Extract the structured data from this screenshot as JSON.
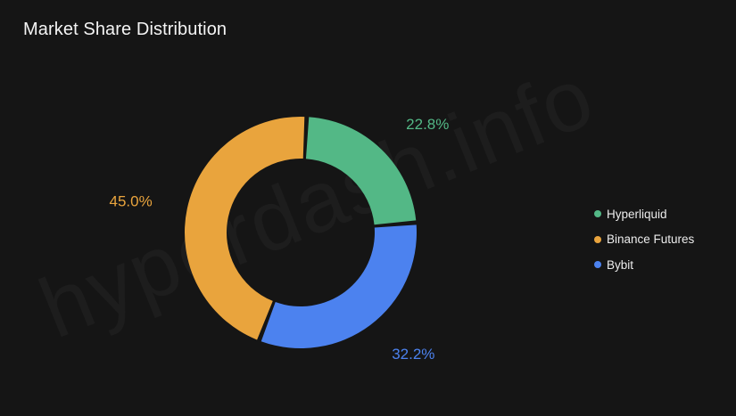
{
  "watermark": "hyperdash.info",
  "chart_data": {
    "type": "pie",
    "title": "Market Share Distribution",
    "donut": true,
    "legend_position": "right",
    "series": [
      {
        "name": "Hyperliquid",
        "value": 22.8,
        "label": "22.8%",
        "color": "#53b886"
      },
      {
        "name": "Bybit",
        "value": 32.2,
        "label": "32.2%",
        "color": "#4c82ef"
      },
      {
        "name": "Binance Futures",
        "value": 45.0,
        "label": "45.0%",
        "color": "#e9a43d"
      }
    ],
    "legend_order": [
      "Hyperliquid",
      "Binance Futures",
      "Bybit"
    ]
  }
}
